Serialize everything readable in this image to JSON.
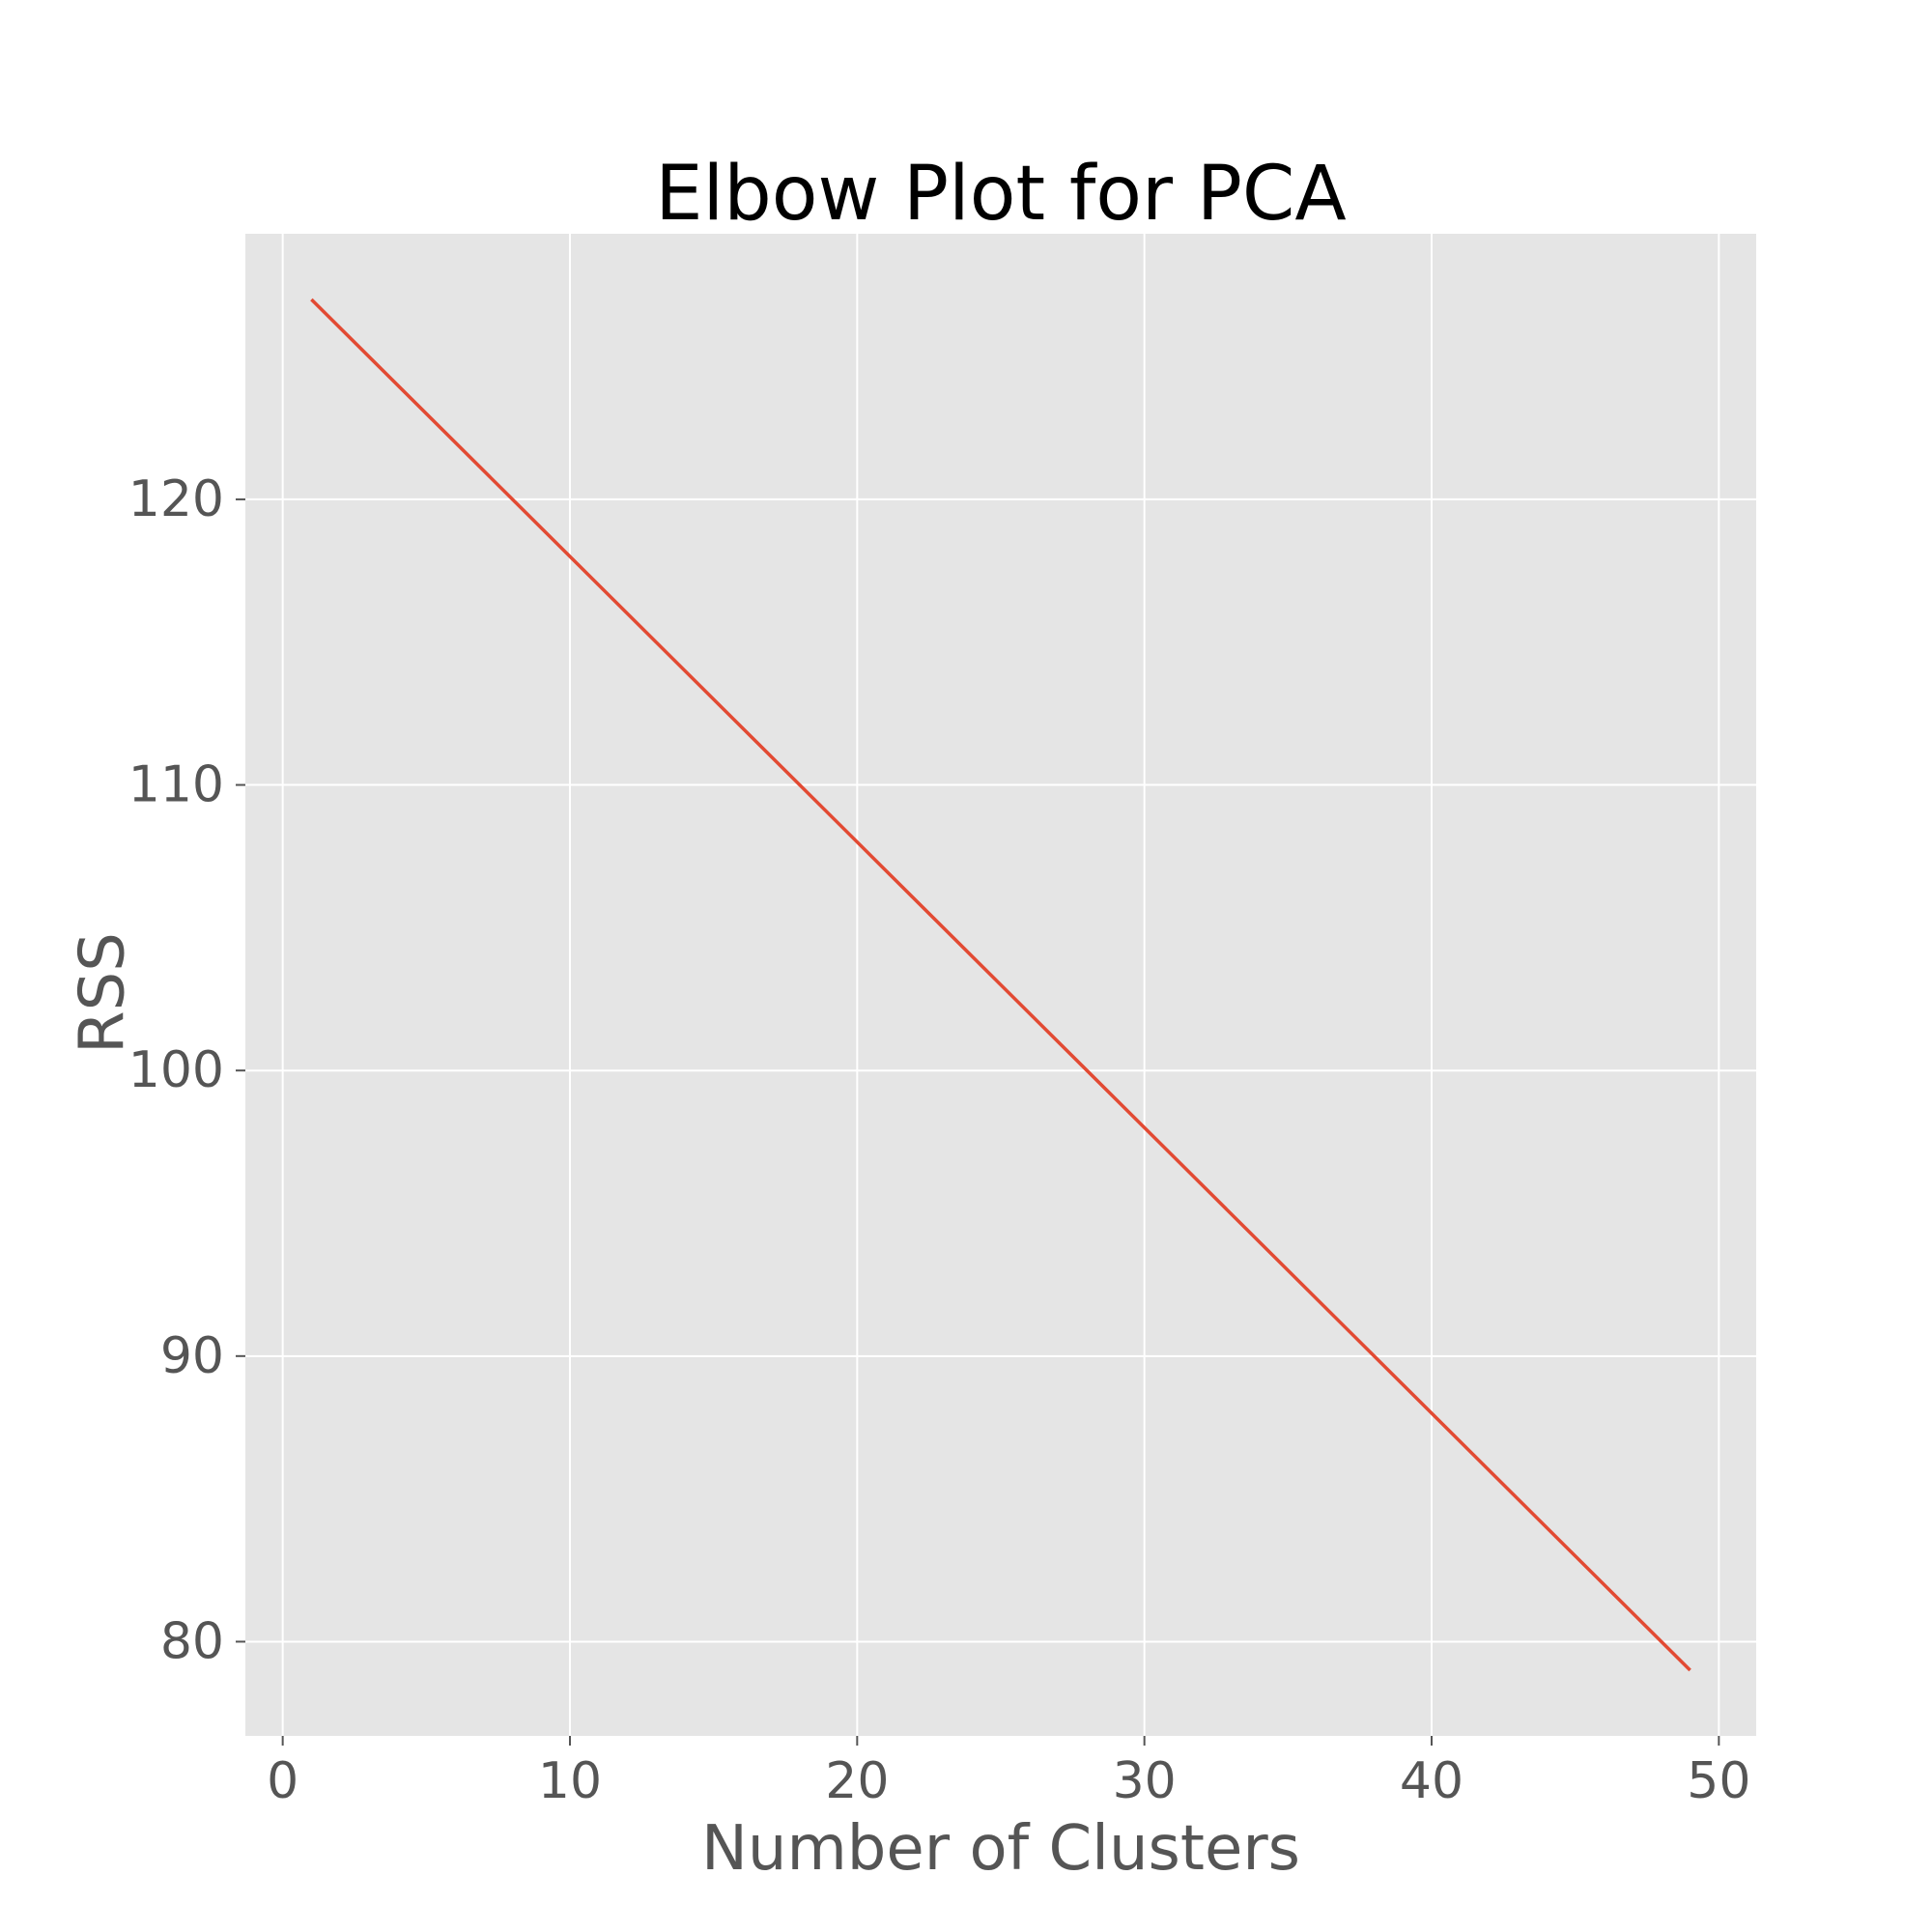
{
  "chart_data": {
    "type": "line",
    "title": "Elbow Plot for PCA",
    "xlabel": "Number of Clusters",
    "ylabel": "RSS",
    "xlim": [
      -1.3,
      51.3
    ],
    "ylim": [
      76.7,
      129.3
    ],
    "xticks": [
      0,
      10,
      20,
      30,
      40,
      50
    ],
    "yticks": [
      80,
      90,
      100,
      110,
      120
    ],
    "grid": true,
    "legend": "none",
    "series": [
      {
        "x": [
          1,
          49
        ],
        "values": [
          127,
          79
        ]
      }
    ],
    "colors": {
      "plot_background": "#e5e5e5",
      "grid": "#ffffff",
      "line": "#e24a33",
      "tick": "#555555"
    }
  }
}
